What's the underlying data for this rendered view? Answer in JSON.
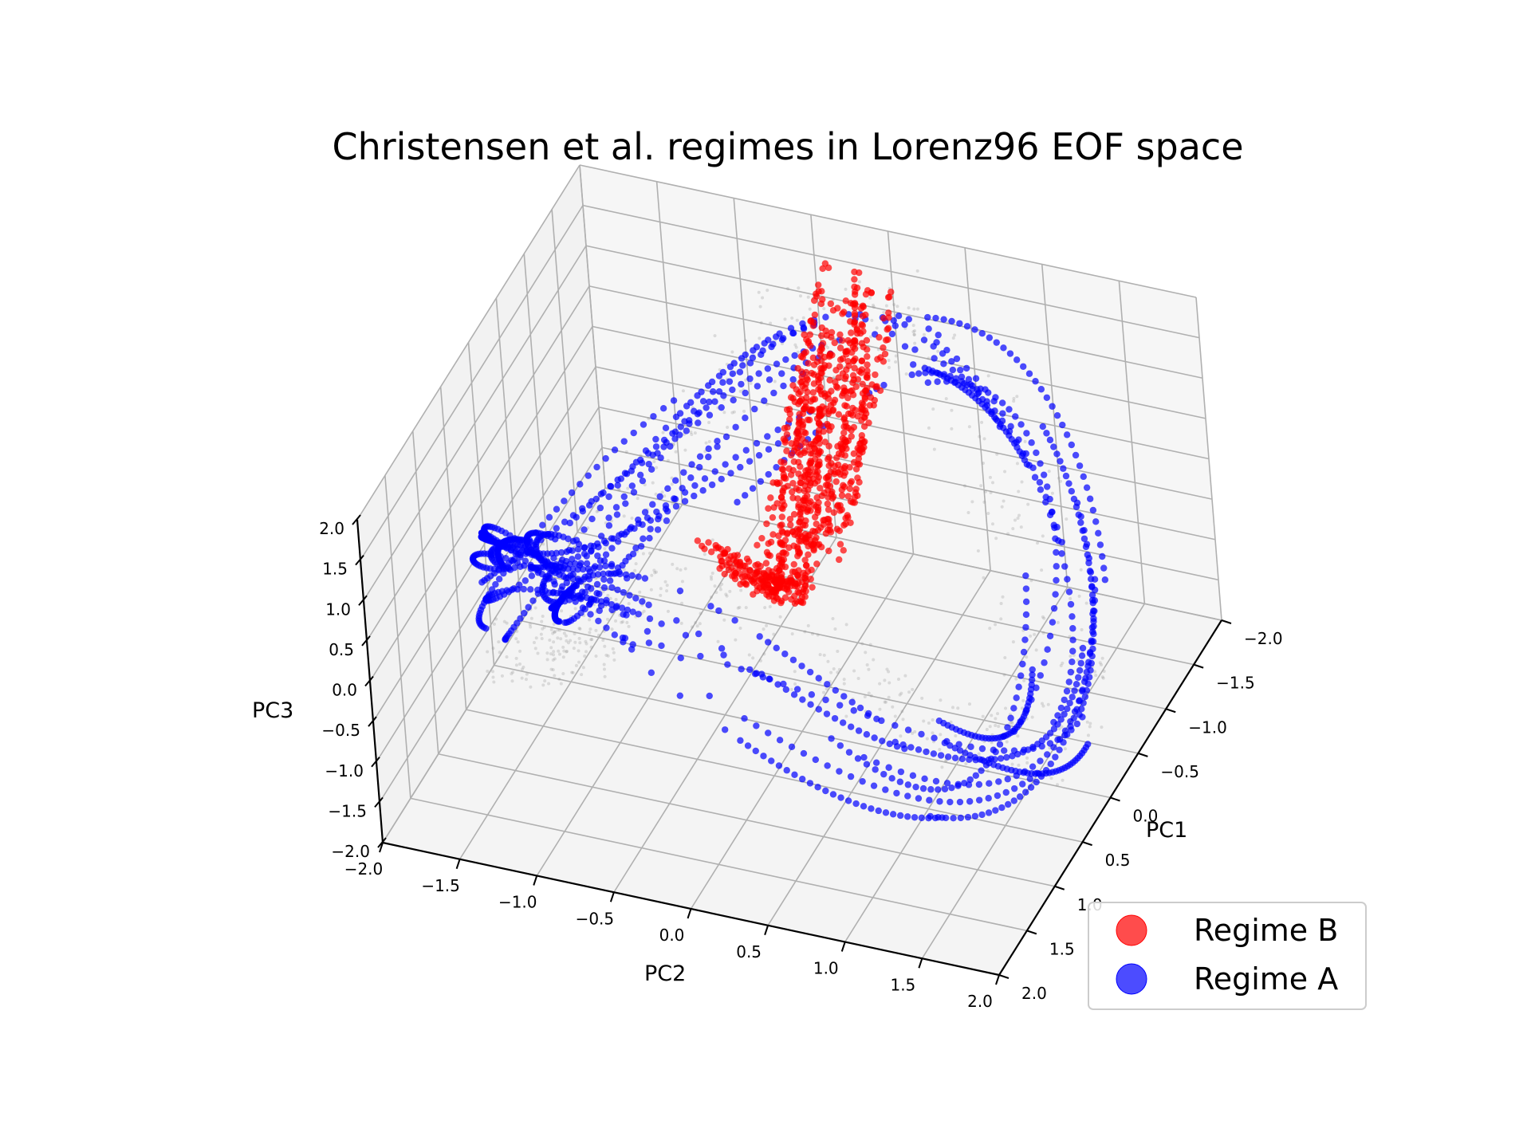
{
  "chart_data": {
    "type": "scatter",
    "projection": "3d",
    "title": "Christensen et al. regimes in Lorenz96 EOF space",
    "xlabel": "PC1",
    "ylabel": "PC2",
    "zlabel": "PC3",
    "xlim": [
      -2.0,
      2.0
    ],
    "ylim": [
      -2.0,
      2.0
    ],
    "zlim": [
      -2.0,
      2.0
    ],
    "xticks": [
      "−2.0",
      "−1.5",
      "−1.0",
      "−0.5",
      "0.0",
      "0.5",
      "1.0",
      "1.5",
      "2.0"
    ],
    "yticks": [
      "−2.0",
      "−1.5",
      "−1.0",
      "−0.5",
      "0.0",
      "0.5",
      "1.0",
      "1.5",
      "2.0"
    ],
    "zticks": [
      "−2.0",
      "−1.5",
      "−1.0",
      "−0.5",
      "0.0",
      "0.5",
      "1.0",
      "1.5",
      "2.0"
    ],
    "grid": true,
    "legend_position": "bottom-right",
    "series": [
      {
        "name": "Regime B",
        "color": "#ff0000",
        "description_of_extent": "narrow band near PC2 ≈ 0 spanning PC1 from about -1.5 to 1.5, clustered where PC3 is high at both PC1 ends",
        "approx_points": [
          [
            -1.3,
            -0.1,
            1.6
          ],
          [
            -1.2,
            0.1,
            1.4
          ],
          [
            -1.0,
            0.0,
            1.2
          ],
          [
            -0.7,
            0.15,
            0.8
          ],
          [
            -0.4,
            -0.05,
            0.4
          ],
          [
            0.0,
            0.1,
            0.0
          ],
          [
            0.4,
            -0.1,
            -0.3
          ],
          [
            0.8,
            0.05,
            0.6
          ],
          [
            1.1,
            0.0,
            1.0
          ],
          [
            1.3,
            0.1,
            1.4
          ],
          [
            1.4,
            -0.1,
            1.6
          ]
        ]
      },
      {
        "name": "Regime A",
        "color": "#0000ff",
        "description_of_extent": "ring-like trajectories around the origin with radius ~1.3–1.8 in PC1/PC2 and PC3 oscillating between about -1.5 and 1.5",
        "approx_points": [
          [
            -1.6,
            -1.4,
            1.2
          ],
          [
            -1.7,
            0.0,
            -1.0
          ],
          [
            -1.6,
            1.4,
            1.2
          ],
          [
            0.0,
            1.8,
            -1.2
          ],
          [
            1.6,
            1.4,
            1.2
          ],
          [
            1.7,
            0.0,
            -1.0
          ],
          [
            1.6,
            -1.4,
            1.2
          ],
          [
            0.0,
            -1.8,
            -1.2
          ]
        ]
      }
    ]
  }
}
